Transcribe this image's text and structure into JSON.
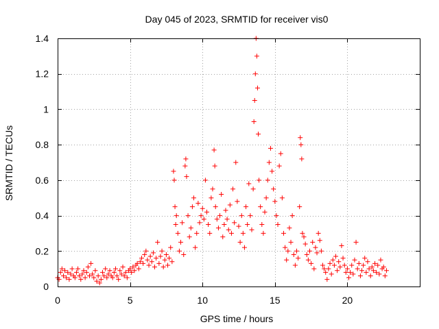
{
  "chart_data": {
    "type": "scatter",
    "title": "Day 045 of 2023, SRMTID for receiver vis0",
    "xlabel": "GPS time / hours",
    "ylabel": "SRMTID / TECUs",
    "xlim": [
      0,
      25
    ],
    "ylim": [
      0,
      1.4
    ],
    "x_ticks": [
      0,
      5,
      10,
      15,
      20
    ],
    "y_ticks": [
      0,
      0.2,
      0.4,
      0.6,
      0.8,
      1,
      1.2,
      1.4
    ],
    "x_tick_labels": [
      "0",
      "5",
      "10",
      "15",
      "20"
    ],
    "y_tick_labels": [
      "0",
      "0.2",
      "0.4",
      "0.6",
      "0.8",
      "1",
      "1.2",
      "1.4"
    ],
    "grid": true,
    "marker": "+",
    "color": "#ff0000",
    "series": [
      {
        "name": "vis0",
        "points": [
          [
            0.0,
            0.05
          ],
          [
            0.1,
            0.04
          ],
          [
            0.2,
            0.08
          ],
          [
            0.3,
            0.1
          ],
          [
            0.4,
            0.06
          ],
          [
            0.5,
            0.09
          ],
          [
            0.6,
            0.05
          ],
          [
            0.7,
            0.08
          ],
          [
            0.8,
            0.04
          ],
          [
            0.9,
            0.07
          ],
          [
            1.0,
            0.1
          ],
          [
            1.1,
            0.06
          ],
          [
            1.2,
            0.05
          ],
          [
            1.3,
            0.08
          ],
          [
            1.4,
            0.1
          ],
          [
            1.5,
            0.06
          ],
          [
            1.6,
            0.04
          ],
          [
            1.7,
            0.07
          ],
          [
            1.8,
            0.09
          ],
          [
            1.9,
            0.05
          ],
          [
            2.0,
            0.08
          ],
          [
            2.1,
            0.11
          ],
          [
            2.2,
            0.06
          ],
          [
            2.3,
            0.13
          ],
          [
            2.4,
            0.07
          ],
          [
            2.5,
            0.05
          ],
          [
            2.6,
            0.09
          ],
          [
            2.7,
            0.03
          ],
          [
            2.8,
            0.06
          ],
          [
            2.9,
            0.02
          ],
          [
            3.0,
            0.04
          ],
          [
            3.1,
            0.08
          ],
          [
            3.2,
            0.06
          ],
          [
            3.3,
            0.1
          ],
          [
            3.4,
            0.05
          ],
          [
            3.5,
            0.07
          ],
          [
            3.6,
            0.09
          ],
          [
            3.7,
            0.06
          ],
          [
            3.8,
            0.05
          ],
          [
            3.9,
            0.08
          ],
          [
            4.0,
            0.1
          ],
          [
            4.1,
            0.06
          ],
          [
            4.2,
            0.04
          ],
          [
            4.3,
            0.09
          ],
          [
            4.4,
            0.07
          ],
          [
            4.5,
            0.11
          ],
          [
            4.6,
            0.06
          ],
          [
            4.7,
            0.08
          ],
          [
            4.8,
            0.05
          ],
          [
            4.9,
            0.09
          ],
          [
            5.0,
            0.1
          ],
          [
            5.1,
            0.08
          ],
          [
            5.2,
            0.11
          ],
          [
            5.3,
            0.09
          ],
          [
            5.4,
            0.12
          ],
          [
            5.5,
            0.13
          ],
          [
            5.6,
            0.1
          ],
          [
            5.7,
            0.14
          ],
          [
            5.8,
            0.16
          ],
          [
            5.9,
            0.13
          ],
          [
            6.0,
            0.18
          ],
          [
            6.1,
            0.2
          ],
          [
            6.2,
            0.15
          ],
          [
            6.3,
            0.12
          ],
          [
            6.4,
            0.17
          ],
          [
            6.5,
            0.14
          ],
          [
            6.6,
            0.19
          ],
          [
            6.7,
            0.11
          ],
          [
            6.8,
            0.16
          ],
          [
            6.9,
            0.25
          ],
          [
            7.0,
            0.13
          ],
          [
            7.1,
            0.17
          ],
          [
            7.2,
            0.2
          ],
          [
            7.3,
            0.11
          ],
          [
            7.4,
            0.15
          ],
          [
            7.5,
            0.18
          ],
          [
            7.6,
            0.12
          ],
          [
            7.7,
            0.16
          ],
          [
            7.8,
            0.22
          ],
          [
            7.9,
            0.14
          ],
          [
            8.0,
            0.65
          ],
          [
            8.05,
            0.6
          ],
          [
            8.1,
            0.45
          ],
          [
            8.15,
            0.35
          ],
          [
            8.2,
            0.4
          ],
          [
            8.3,
            0.3
          ],
          [
            8.4,
            0.2
          ],
          [
            8.5,
            0.25
          ],
          [
            8.6,
            0.36
          ],
          [
            8.7,
            0.18
          ],
          [
            8.8,
            0.68
          ],
          [
            8.85,
            0.72
          ],
          [
            8.9,
            0.62
          ],
          [
            9.0,
            0.4
          ],
          [
            9.1,
            0.28
          ],
          [
            9.2,
            0.33
          ],
          [
            9.3,
            0.45
          ],
          [
            9.4,
            0.5
          ],
          [
            9.5,
            0.22
          ],
          [
            9.6,
            0.3
          ],
          [
            9.7,
            0.47
          ],
          [
            9.8,
            0.36
          ],
          [
            9.9,
            0.4
          ],
          [
            10.0,
            0.44
          ],
          [
            10.1,
            0.38
          ],
          [
            10.2,
            0.6
          ],
          [
            10.3,
            0.42
          ],
          [
            10.4,
            0.35
          ],
          [
            10.5,
            0.3
          ],
          [
            10.6,
            0.5
          ],
          [
            10.7,
            0.55
          ],
          [
            10.8,
            0.77
          ],
          [
            10.85,
            0.68
          ],
          [
            10.9,
            0.45
          ],
          [
            11.0,
            0.38
          ],
          [
            11.1,
            0.33
          ],
          [
            11.2,
            0.4
          ],
          [
            11.3,
            0.52
          ],
          [
            11.4,
            0.28
          ],
          [
            11.5,
            0.35
          ],
          [
            11.6,
            0.43
          ],
          [
            11.7,
            0.38
          ],
          [
            11.8,
            0.32
          ],
          [
            11.9,
            0.46
          ],
          [
            12.0,
            0.3
          ],
          [
            12.1,
            0.55
          ],
          [
            12.2,
            0.36
          ],
          [
            12.3,
            0.7
          ],
          [
            12.4,
            0.48
          ],
          [
            12.5,
            0.34
          ],
          [
            12.6,
            0.25
          ],
          [
            12.7,
            0.4
          ],
          [
            12.8,
            0.3
          ],
          [
            12.9,
            0.22
          ],
          [
            13.0,
            0.45
          ],
          [
            13.1,
            0.35
          ],
          [
            13.2,
            0.58
          ],
          [
            13.3,
            0.4
          ],
          [
            13.4,
            0.32
          ],
          [
            13.5,
            0.55
          ],
          [
            13.55,
            0.93
          ],
          [
            13.6,
            1.05
          ],
          [
            13.65,
            1.2
          ],
          [
            13.7,
            1.4
          ],
          [
            13.75,
            1.3
          ],
          [
            13.8,
            1.12
          ],
          [
            13.85,
            0.86
          ],
          [
            13.9,
            0.6
          ],
          [
            14.0,
            0.45
          ],
          [
            14.1,
            0.35
          ],
          [
            14.2,
            0.3
          ],
          [
            14.3,
            0.42
          ],
          [
            14.4,
            0.5
          ],
          [
            14.5,
            0.6
          ],
          [
            14.6,
            0.7
          ],
          [
            14.7,
            0.78
          ],
          [
            14.8,
            0.65
          ],
          [
            14.9,
            0.55
          ],
          [
            15.0,
            0.48
          ],
          [
            15.1,
            0.4
          ],
          [
            15.2,
            0.35
          ],
          [
            15.3,
            0.68
          ],
          [
            15.4,
            0.75
          ],
          [
            15.5,
            0.5
          ],
          [
            15.6,
            0.3
          ],
          [
            15.7,
            0.22
          ],
          [
            15.8,
            0.15
          ],
          [
            15.9,
            0.2
          ],
          [
            16.0,
            0.33
          ],
          [
            16.1,
            0.25
          ],
          [
            16.2,
            0.4
          ],
          [
            16.3,
            0.18
          ],
          [
            16.4,
            0.12
          ],
          [
            16.5,
            0.2
          ],
          [
            16.6,
            0.16
          ],
          [
            16.7,
            0.45
          ],
          [
            16.75,
            0.84
          ],
          [
            16.8,
            0.8
          ],
          [
            16.85,
            0.72
          ],
          [
            16.9,
            0.3
          ],
          [
            17.0,
            0.28
          ],
          [
            17.1,
            0.24
          ],
          [
            17.2,
            0.18
          ],
          [
            17.3,
            0.15
          ],
          [
            17.4,
            0.2
          ],
          [
            17.5,
            0.13
          ],
          [
            17.6,
            0.25
          ],
          [
            17.7,
            0.1
          ],
          [
            17.8,
            0.22
          ],
          [
            17.9,
            0.19
          ],
          [
            18.0,
            0.3
          ],
          [
            18.1,
            0.26
          ],
          [
            18.2,
            0.2
          ],
          [
            18.3,
            0.12
          ],
          [
            18.4,
            0.1
          ],
          [
            18.5,
            0.08
          ],
          [
            18.6,
            0.04
          ],
          [
            18.7,
            0.1
          ],
          [
            18.8,
            0.13
          ],
          [
            18.9,
            0.07
          ],
          [
            19.0,
            0.15
          ],
          [
            19.1,
            0.12
          ],
          [
            19.2,
            0.17
          ],
          [
            19.3,
            0.09
          ],
          [
            19.4,
            0.14
          ],
          [
            19.5,
            0.11
          ],
          [
            19.6,
            0.23
          ],
          [
            19.7,
            0.16
          ],
          [
            19.8,
            0.12
          ],
          [
            19.9,
            0.08
          ],
          [
            20.0,
            0.1
          ],
          [
            20.1,
            0.05
          ],
          [
            20.2,
            0.08
          ],
          [
            20.3,
            0.12
          ],
          [
            20.4,
            0.07
          ],
          [
            20.5,
            0.15
          ],
          [
            20.6,
            0.25
          ],
          [
            20.7,
            0.1
          ],
          [
            20.8,
            0.13
          ],
          [
            20.9,
            0.06
          ],
          [
            21.0,
            0.09
          ],
          [
            21.1,
            0.12
          ],
          [
            21.2,
            0.16
          ],
          [
            21.3,
            0.08
          ],
          [
            21.4,
            0.14
          ],
          [
            21.5,
            0.1
          ],
          [
            21.6,
            0.06
          ],
          [
            21.7,
            0.11
          ],
          [
            21.8,
            0.09
          ],
          [
            21.9,
            0.13
          ],
          [
            22.0,
            0.08
          ],
          [
            22.1,
            0.12
          ],
          [
            22.2,
            0.07
          ],
          [
            22.3,
            0.15
          ],
          [
            22.4,
            0.1
          ],
          [
            22.5,
            0.11
          ],
          [
            22.6,
            0.06
          ],
          [
            22.7,
            0.09
          ]
        ]
      }
    ]
  }
}
